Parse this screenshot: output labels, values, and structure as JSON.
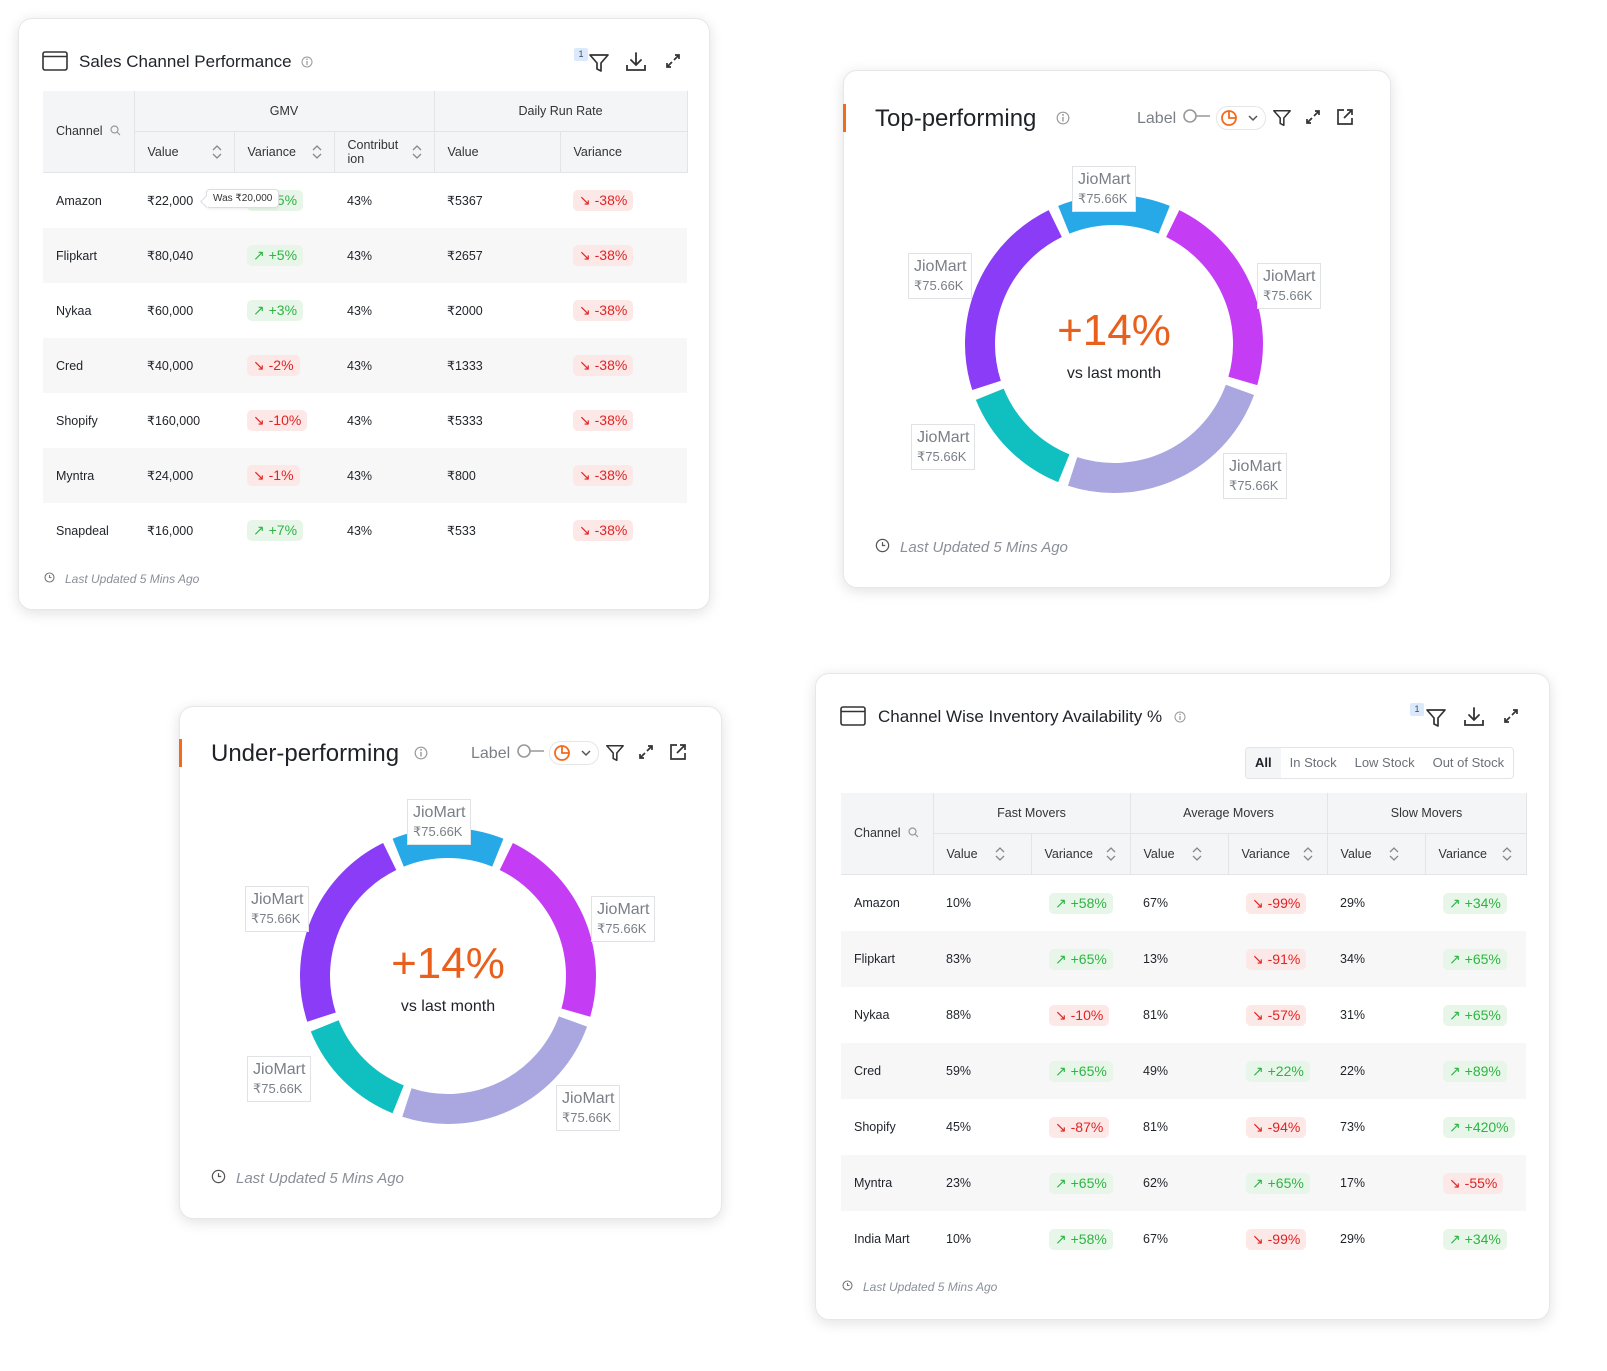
{
  "sales_card": {
    "title": "Sales Channel Performance",
    "filter_count": "1",
    "group_gmv": "GMV",
    "group_drr": "Daily Run Rate",
    "col_channel": "Channel",
    "col_value": "Value",
    "col_variance": "Variance",
    "col_contribution": "Contribut ion",
    "col_drr_value": "Value",
    "col_drr_variance": "Variance",
    "tooltip": "Was ₹20,000",
    "rows": [
      {
        "channel": "Amazon",
        "value": "₹22,000",
        "variance": "↗ +5%",
        "dir": "up",
        "contribution": "43%",
        "drr_value": "₹5367",
        "drr_variance": "↘ -38%"
      },
      {
        "channel": "Flipkart",
        "value": "₹80,040",
        "variance": "↗ +5%",
        "dir": "up",
        "contribution": "43%",
        "drr_value": "₹2657",
        "drr_variance": "↘ -38%"
      },
      {
        "channel": "Nykaa",
        "value": "₹60,000",
        "variance": "↗ +3%",
        "dir": "up",
        "contribution": "43%",
        "drr_value": "₹2000",
        "drr_variance": "↘ -38%"
      },
      {
        "channel": "Cred",
        "value": "₹40,000",
        "variance": "↘ -2%",
        "dir": "down",
        "contribution": "43%",
        "drr_value": "₹1333",
        "drr_variance": "↘ -38%"
      },
      {
        "channel": "Shopify",
        "value": "₹160,000",
        "variance": "↘ -10%",
        "dir": "down",
        "contribution": "43%",
        "drr_value": "₹5333",
        "drr_variance": "↘ -38%"
      },
      {
        "channel": "Myntra",
        "value": "₹24,000",
        "variance": "↘ -1%",
        "dir": "down",
        "contribution": "43%",
        "drr_value": "₹800",
        "drr_variance": "↘ -38%"
      },
      {
        "channel": "Snapdeal",
        "value": "₹16,000",
        "variance": "↗ +7%",
        "dir": "up",
        "contribution": "43%",
        "drr_value": "₹533",
        "drr_variance": "↘ -38%"
      }
    ],
    "footer": "Last Updated 5 Mins Ago"
  },
  "top_card": {
    "title": "Top-performing",
    "label_toggle": "Label",
    "center_value": "+14%",
    "center_caption": "vs last month",
    "segments": [
      {
        "name": "JioMart",
        "value": "₹75.66K",
        "color": "#27a9e8"
      },
      {
        "name": "JioMart",
        "value": "₹75.66K",
        "color": "#c53cf5"
      },
      {
        "name": "JioMart",
        "value": "₹75.66K",
        "color": "#a9a6e0"
      },
      {
        "name": "JioMart",
        "value": "₹75.66K",
        "color": "#10bfc0"
      },
      {
        "name": "JioMart",
        "value": "₹75.66K",
        "color": "#8a3cf6"
      }
    ],
    "footer": "Last Updated 5 Mins Ago"
  },
  "under_card": {
    "title": "Under-performing",
    "label_toggle": "Label",
    "center_value": "+14%",
    "center_caption": "vs last month",
    "segments": [
      {
        "name": "JioMart",
        "value": "₹75.66K",
        "color": "#27a9e8"
      },
      {
        "name": "JioMart",
        "value": "₹75.66K",
        "color": "#c53cf5"
      },
      {
        "name": "JioMart",
        "value": "₹75.66K",
        "color": "#a9a6e0"
      },
      {
        "name": "JioMart",
        "value": "₹75.66K",
        "color": "#10bfc0"
      },
      {
        "name": "JioMart",
        "value": "₹75.66K",
        "color": "#8a3cf6"
      }
    ],
    "footer": "Last Updated 5 Mins Ago"
  },
  "inventory_card": {
    "title": "Channel Wise Inventory Availability %",
    "filter_count": "1",
    "tabs": [
      "All",
      "In Stock",
      "Low Stock",
      "Out of Stock"
    ],
    "group_fast": "Fast Movers",
    "group_avg": "Average Movers",
    "group_slow": "Slow Movers",
    "col_channel": "Channel",
    "col_value": "Value",
    "col_variance": "Variance",
    "rows": [
      {
        "channel": "Amazon",
        "f_val": "10%",
        "f_var": "↗ +58%",
        "f_dir": "up",
        "a_val": "67%",
        "a_var": "↘ -99%",
        "a_dir": "down",
        "s_val": "29%",
        "s_var": "↗ +34%",
        "s_dir": "up"
      },
      {
        "channel": "Flipkart",
        "f_val": "83%",
        "f_var": "↗ +65%",
        "f_dir": "up",
        "a_val": "13%",
        "a_var": "↘ -91%",
        "a_dir": "down",
        "s_val": "34%",
        "s_var": "↗ +65%",
        "s_dir": "up"
      },
      {
        "channel": "Nykaa",
        "f_val": "88%",
        "f_var": "↘ -10%",
        "f_dir": "down",
        "a_val": "81%",
        "a_var": "↘ -57%",
        "a_dir": "down",
        "s_val": "31%",
        "s_var": "↗ +65%",
        "s_dir": "up"
      },
      {
        "channel": "Cred",
        "f_val": "59%",
        "f_var": "↗ +65%",
        "f_dir": "up",
        "a_val": "49%",
        "a_var": "↗ +22%",
        "a_dir": "up",
        "s_val": "22%",
        "s_var": "↗ +89%",
        "s_dir": "up"
      },
      {
        "channel": "Shopify",
        "f_val": "45%",
        "f_var": "↘ -87%",
        "f_dir": "down",
        "a_val": "81%",
        "a_var": "↘ -94%",
        "a_dir": "down",
        "s_val": "73%",
        "s_var": "↗ +420%",
        "s_dir": "up"
      },
      {
        "channel": "Myntra",
        "f_val": "23%",
        "f_var": "↗ +65%",
        "f_dir": "up",
        "a_val": "62%",
        "a_var": "↗ +65%",
        "a_dir": "up",
        "s_val": "17%",
        "s_var": "↘ -55%",
        "s_dir": "down"
      },
      {
        "channel": "India Mart",
        "f_val": "10%",
        "f_var": "↗ +58%",
        "f_dir": "up",
        "a_val": "67%",
        "a_var": "↘ -99%",
        "a_dir": "down",
        "s_val": "29%",
        "s_var": "↗ +34%",
        "s_dir": "up"
      }
    ],
    "footer": "Last Updated 5 Mins Ago"
  }
}
